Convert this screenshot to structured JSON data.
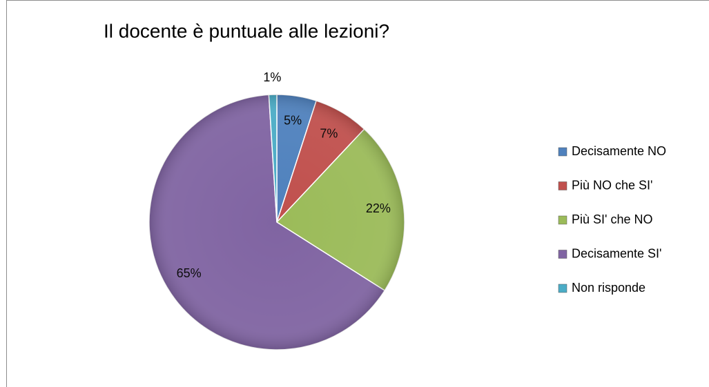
{
  "chart_data": {
    "type": "pie",
    "title": "Il docente è puntuale alle lezioni?",
    "categories": [
      "Decisamente NO",
      "Più NO che SI'",
      "Più SI' che NO",
      "Decisamente SI'",
      "Non risponde"
    ],
    "values": [
      5,
      7,
      22,
      65,
      1
    ],
    "value_labels": [
      "5%",
      "7%",
      "22%",
      "65%",
      "1%"
    ],
    "colors": [
      "#4f81bd",
      "#c0504d",
      "#9bbb59",
      "#8064a2",
      "#4bacc6"
    ],
    "legend": "right"
  }
}
